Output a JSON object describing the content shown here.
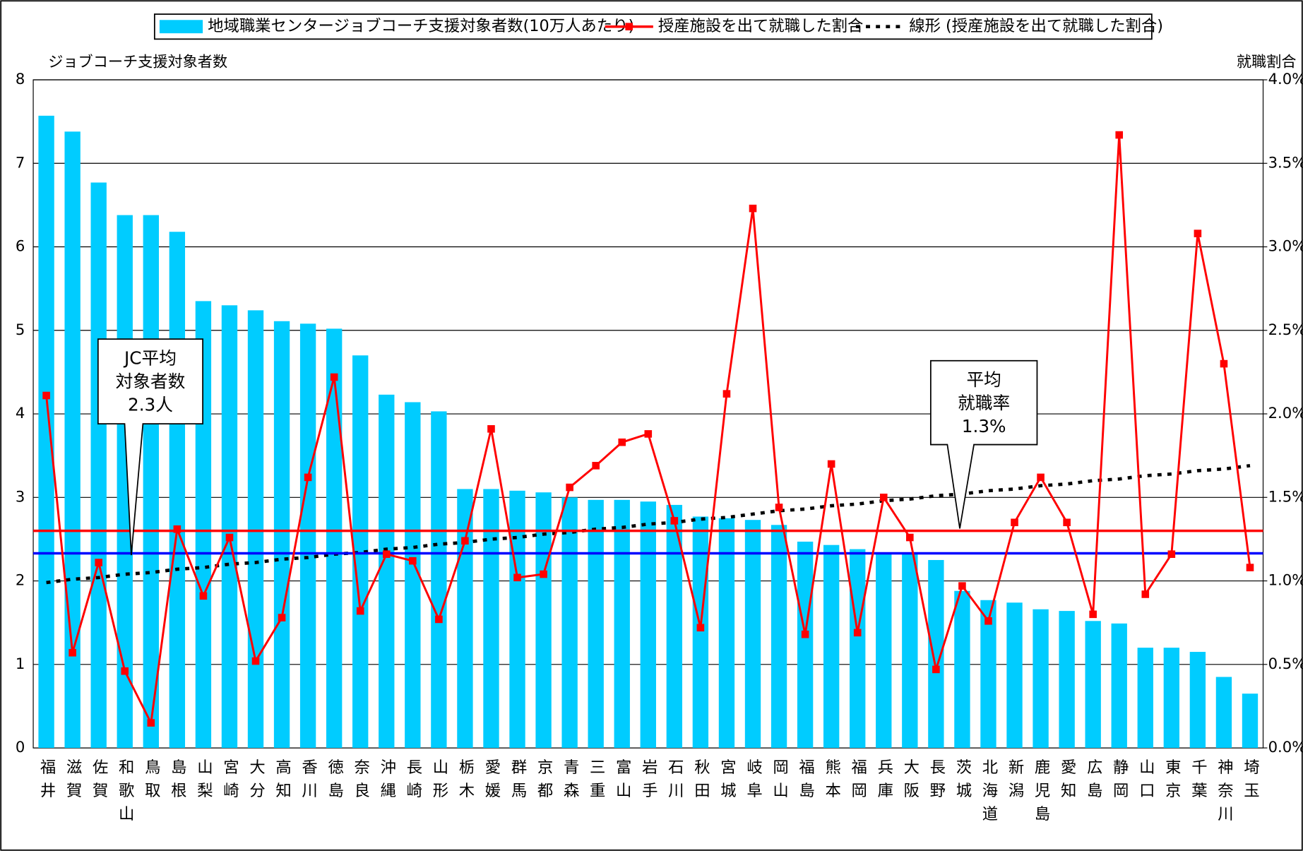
{
  "chart_data": {
    "type": "bar-line",
    "y_axis_title": "ジョブコーチ支援対象者数",
    "y2_axis_title": "就職割合",
    "categories": [
      "福井",
      "滋賀",
      "佐賀",
      "和歌山",
      "鳥取",
      "島根",
      "山梨",
      "宮崎",
      "大分",
      "高知",
      "香川",
      "徳島",
      "奈良",
      "沖縄",
      "長崎",
      "山形",
      "栃木",
      "愛媛",
      "群馬",
      "京都",
      "青森",
      "三重",
      "富山",
      "岩手",
      "石川",
      "秋田",
      "宮城",
      "岐阜",
      "岡山",
      "福島",
      "熊本",
      "福岡",
      "兵庫",
      "大阪",
      "長野",
      "茨城",
      "北海道",
      "新潟",
      "鹿児島",
      "愛知",
      "広島",
      "静岡",
      "山口",
      "東京",
      "千葉",
      "神奈川",
      "埼玉"
    ],
    "series": [
      {
        "name": "地域職業センタージョブコーチ支援対象者数(10万人あたり)",
        "kind": "bar",
        "color": "#00ccff",
        "values": [
          7.57,
          7.38,
          6.77,
          6.38,
          6.38,
          6.18,
          5.35,
          5.3,
          5.24,
          5.11,
          5.08,
          5.02,
          4.7,
          4.23,
          4.14,
          4.03,
          3.1,
          3.1,
          3.08,
          3.06,
          3.0,
          2.97,
          2.97,
          2.95,
          2.91,
          2.77,
          2.75,
          2.73,
          2.67,
          2.47,
          2.43,
          2.38,
          2.33,
          2.32,
          2.25,
          1.88,
          1.77,
          1.74,
          1.66,
          1.64,
          1.52,
          1.49,
          1.2,
          1.2,
          1.15,
          0.85,
          0.65
        ]
      },
      {
        "name": "授産施設を出て就職した割合",
        "kind": "line",
        "axis": "y2",
        "color": "#ff0000",
        "values": [
          2.11,
          0.57,
          1.11,
          0.46,
          0.15,
          1.31,
          0.91,
          1.26,
          0.52,
          0.78,
          1.62,
          2.22,
          0.82,
          1.16,
          1.12,
          0.77,
          1.24,
          1.91,
          1.02,
          1.04,
          1.56,
          1.69,
          1.83,
          1.88,
          1.36,
          0.72,
          2.12,
          3.23,
          1.44,
          0.68,
          1.7,
          0.69,
          1.5,
          1.26,
          0.47,
          0.97,
          0.76,
          1.35,
          1.62,
          1.35,
          0.8,
          3.67,
          0.92,
          1.16,
          3.08,
          2.3,
          1.08
        ]
      },
      {
        "name": "線形 (授産施設を出て就職した割合)",
        "kind": "trend",
        "axis": "y2",
        "color": "#000000",
        "values": [
          0.99,
          1.01,
          1.02,
          1.04,
          1.05,
          1.07,
          1.08,
          1.1,
          1.11,
          1.13,
          1.14,
          1.16,
          1.17,
          1.19,
          1.2,
          1.22,
          1.23,
          1.25,
          1.26,
          1.28,
          1.29,
          1.31,
          1.32,
          1.34,
          1.35,
          1.37,
          1.38,
          1.4,
          1.42,
          1.43,
          1.45,
          1.46,
          1.48,
          1.49,
          1.51,
          1.52,
          1.54,
          1.55,
          1.57,
          1.58,
          1.6,
          1.61,
          1.63,
          1.64,
          1.66,
          1.67,
          1.69
        ]
      }
    ],
    "reference_lines": [
      {
        "value": 2.33,
        "axis": "y",
        "color": "#0000ff"
      },
      {
        "value": 1.3,
        "axis": "y2",
        "color": "#ff0000"
      }
    ],
    "annotations": [
      {
        "lines": [
          "JC平均",
          "対象者数",
          "2.3人"
        ]
      },
      {
        "lines": [
          "平均",
          "就職率",
          "1.3%"
        ]
      }
    ],
    "ylim": [
      0,
      8
    ],
    "yticks": [
      0,
      1,
      2,
      3,
      4,
      5,
      6,
      7,
      8
    ],
    "y2lim": [
      0,
      4
    ],
    "y2ticks": [
      {
        "value": 0,
        "label": "0.0%"
      },
      {
        "value": 0.5,
        "label": "0.5%"
      },
      {
        "value": 1,
        "label": "1.0%"
      },
      {
        "value": 1.5,
        "label": "1.5%"
      },
      {
        "value": 2,
        "label": "2.0%"
      },
      {
        "value": 2.5,
        "label": "2.5%"
      },
      {
        "value": 3,
        "label": "3.0%"
      },
      {
        "value": 3.5,
        "label": "3.5%"
      },
      {
        "value": 4,
        "label": "4.0%"
      }
    ],
    "grid": true,
    "legend": "top"
  }
}
